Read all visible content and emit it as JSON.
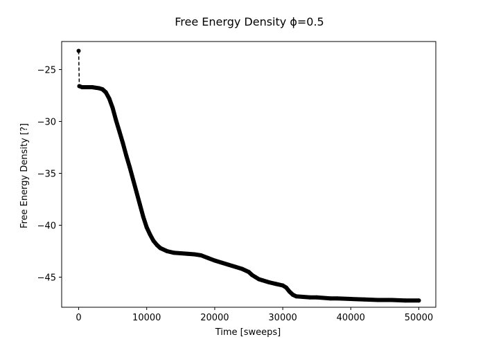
{
  "chart_data": {
    "type": "line",
    "title": "Free Energy Density ϕ=0.5",
    "xlabel": "Time [sweeps]",
    "ylabel": "Free Energy Density [?]",
    "xlim": [
      -2500,
      52500
    ],
    "ylim": [
      -47.9,
      -22.3
    ],
    "xticks": [
      0,
      10000,
      20000,
      30000,
      40000,
      50000
    ],
    "xtick_labels": [
      "0",
      "10000",
      "20000",
      "30000",
      "40000",
      "50000"
    ],
    "yticks": [
      -25,
      -30,
      -35,
      -40,
      -45
    ],
    "ytick_labels": [
      "−25",
      "−30",
      "−35",
      "−40",
      "−45"
    ],
    "grid": false,
    "series": [
      {
        "color": "#000000",
        "marker": "circle",
        "linestyle": "dashed",
        "x": [
          0,
          100,
          500,
          1000,
          2000,
          2500,
          3000,
          3500,
          4000,
          4500,
          5000,
          5500,
          6000,
          6500,
          7000,
          7500,
          8000,
          8500,
          9000,
          9500,
          10000,
          10500,
          11000,
          11500,
          12000,
          13000,
          14000,
          15000,
          16000,
          17000,
          18000,
          19000,
          20000,
          21000,
          22000,
          23000,
          24000,
          25000,
          25500,
          26000,
          26500,
          27000,
          28000,
          29000,
          30000,
          30500,
          31000,
          31500,
          32000,
          33000,
          34000,
          35000,
          36000,
          37000,
          38000,
          40000,
          42000,
          44000,
          46000,
          48000,
          50000
        ],
        "y": [
          -23.2,
          -26.6,
          -26.7,
          -26.7,
          -26.7,
          -26.75,
          -26.8,
          -26.9,
          -27.2,
          -27.8,
          -28.7,
          -29.9,
          -31.0,
          -32.1,
          -33.3,
          -34.4,
          -35.6,
          -36.8,
          -38.0,
          -39.2,
          -40.2,
          -40.9,
          -41.5,
          -41.9,
          -42.2,
          -42.5,
          -42.65,
          -42.7,
          -42.75,
          -42.8,
          -42.9,
          -43.15,
          -43.4,
          -43.6,
          -43.8,
          -44.0,
          -44.2,
          -44.5,
          -44.8,
          -45.0,
          -45.2,
          -45.3,
          -45.5,
          -45.65,
          -45.8,
          -46.0,
          -46.4,
          -46.7,
          -46.85,
          -46.9,
          -46.95,
          -46.95,
          -47.0,
          -47.05,
          -47.05,
          -47.1,
          -47.15,
          -47.2,
          -47.2,
          -47.25,
          -47.25
        ]
      }
    ]
  }
}
